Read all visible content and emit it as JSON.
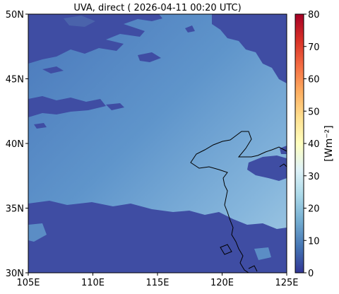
{
  "title": "UVA, direct ( 2026-04-11 00:20 UTC)",
  "map": {
    "lon_range": [
      105,
      125
    ],
    "lat_range": [
      30,
      50
    ],
    "x_ticks": [
      {
        "value": 105,
        "label": "105E"
      },
      {
        "value": 110,
        "label": "110E"
      },
      {
        "value": 115,
        "label": "115E"
      },
      {
        "value": 120,
        "label": "120E"
      },
      {
        "value": 125,
        "label": "125E"
      }
    ],
    "y_ticks": [
      {
        "value": 30,
        "label": "30N"
      },
      {
        "value": 35,
        "label": "35N"
      },
      {
        "value": 40,
        "label": "40N"
      },
      {
        "value": 45,
        "label": "45N"
      },
      {
        "value": 50,
        "label": "50N"
      }
    ]
  },
  "colorbar": {
    "label": "[Wm⁻²]",
    "range": [
      0,
      80
    ],
    "ticks": [
      "0",
      "10",
      "20",
      "30",
      "40",
      "50",
      "60",
      "70",
      "80"
    ],
    "colormap": "RdYlBu_r"
  },
  "colors": {
    "dark_blue": "#3f4da3",
    "field_low": "#4d7ec0",
    "field_high": "#9ec7e0",
    "coastline": "#000000"
  }
}
